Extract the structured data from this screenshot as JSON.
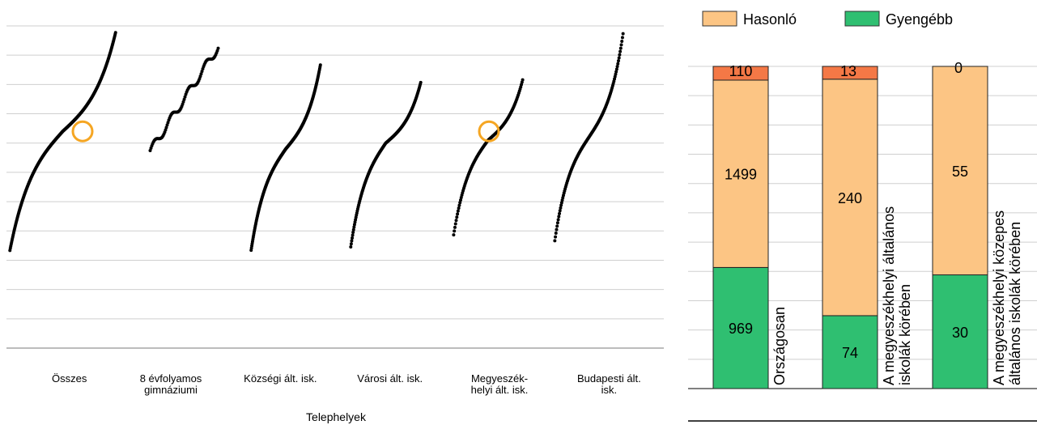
{
  "colors": {
    "hasonlo": "#fcc584",
    "gyengebb": "#2fbf71",
    "jobb": "#f47846",
    "marker": "#f5a623",
    "points": "#000000",
    "grid": "#cfcfcf"
  },
  "chart_data": [
    {
      "type": "scatter",
      "title": "",
      "xlabel": "Telephelyek",
      "ylabel": "",
      "categories": [
        "Összes",
        "8 évfolyamos gimnáziumi",
        "Községi ált. isk.",
        "Városi ált. isk.",
        "Megyeszékhelyi ált. isk.",
        "Budapesti ált. isk."
      ],
      "category_lines": [
        [
          "Összes"
        ],
        [
          "8 évfolyamos",
          "gimnáziumi"
        ],
        [
          "Községi ált. isk."
        ],
        [
          "Városi ált. isk."
        ],
        [
          "Megyeszék-",
          "helyi ált. isk."
        ],
        [
          "Budapesti ált.",
          "isk."
        ]
      ],
      "ylim": [
        0,
        11
      ],
      "gridlines": 11,
      "grid": true,
      "series": [
        {
          "values_min": 3.3,
          "values_max": 10.8,
          "pivot": 7.4,
          "steep": 4.8,
          "count": 260,
          "highlight": 7.4
        },
        {
          "values_min": 6.7,
          "values_max": 10.3,
          "pivot": 8.5,
          "steep": 0.0,
          "count": 85,
          "highlight": null
        },
        {
          "values_min": 3.3,
          "values_max": 9.7,
          "pivot": 6.8,
          "steep": 4.5,
          "count": 200,
          "highlight": null
        },
        {
          "values_min": 3.4,
          "values_max": 9.1,
          "pivot": 7.0,
          "steep": 4.5,
          "count": 150,
          "highlight": null
        },
        {
          "values_min": 3.8,
          "values_max": 9.2,
          "pivot": 7.1,
          "steep": 3.8,
          "count": 110,
          "highlight": 7.4
        },
        {
          "values_min": 3.6,
          "values_max": 10.8,
          "pivot": 7.2,
          "steep": 4.0,
          "count": 120,
          "highlight": null
        }
      ]
    },
    {
      "type": "bar",
      "stacked": true,
      "title": "",
      "legend": [
        {
          "name": "Hasonló",
          "color": "#fcc584"
        },
        {
          "name": "Gyengébb",
          "color": "#2fbf71"
        }
      ],
      "legend_position": "top",
      "categories": [
        "Országosan",
        "A megyeszékhelyi általános iskolák körében",
        "A megyeszékhelyi közepes általános iskolák körében"
      ],
      "category_lines": [
        [
          "Országosan"
        ],
        [
          "A megyeszékhelyi általános",
          "iskolák körében"
        ],
        [
          "A megyeszékhelyi közepes",
          "általános iskolák körében"
        ]
      ],
      "series": [
        {
          "name": "Gyengébb",
          "values": [
            969,
            74,
            30
          ]
        },
        {
          "name": "Hasonló",
          "values": [
            1499,
            240,
            55
          ]
        },
        {
          "name": "",
          "values": [
            110,
            13,
            0
          ]
        }
      ],
      "grid": true
    }
  ]
}
